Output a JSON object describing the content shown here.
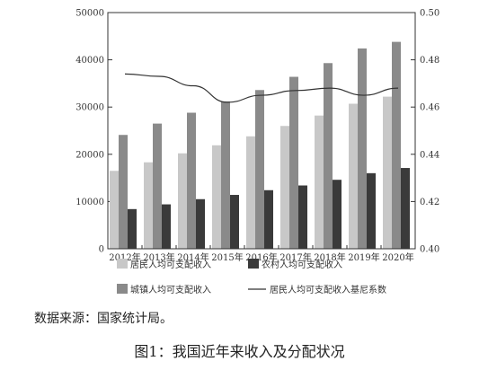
{
  "chart_data": {
    "type": "bar",
    "categories": [
      "2012年",
      "2013年",
      "2014年",
      "2015年",
      "2016年",
      "2017年",
      "2018年",
      "2019年",
      "2020年"
    ],
    "series": [
      {
        "name": "居民人均可支配收入",
        "kind": "bar",
        "axis": "left",
        "color": "#c8c8c8",
        "values": [
          16500,
          18300,
          20200,
          21900,
          23800,
          26000,
          28200,
          30700,
          32200
        ]
      },
      {
        "name": "城镇人均可支配收入",
        "kind": "bar",
        "axis": "left",
        "color": "#8a8a8a",
        "values": [
          24100,
          26500,
          28800,
          31200,
          33600,
          36400,
          39300,
          42400,
          43800
        ]
      },
      {
        "name": "农村人均可支配收入",
        "kind": "bar",
        "axis": "left",
        "color": "#3a3a3a",
        "values": [
          8400,
          9400,
          10500,
          11400,
          12400,
          13400,
          14600,
          16000,
          17100
        ]
      },
      {
        "name": "居民人均可支配收入基尼系数",
        "kind": "line",
        "axis": "right",
        "color": "#333333",
        "values": [
          0.474,
          0.473,
          0.469,
          0.462,
          0.465,
          0.467,
          0.468,
          0.465,
          0.468
        ]
      }
    ],
    "y_left": {
      "lim": [
        0,
        50000
      ],
      "ticks": [
        0,
        10000,
        20000,
        30000,
        40000,
        50000
      ]
    },
    "y_right": {
      "lim": [
        0.4,
        0.5
      ],
      "ticks": [
        "0.40",
        "0.42",
        "0.44",
        "0.46",
        "0.48",
        "0.50"
      ]
    },
    "grid": false,
    "legend_position": "bottom"
  },
  "source_note": "数据来源：国家统计局。",
  "caption": "图1：我国近年来收入及分配状况"
}
